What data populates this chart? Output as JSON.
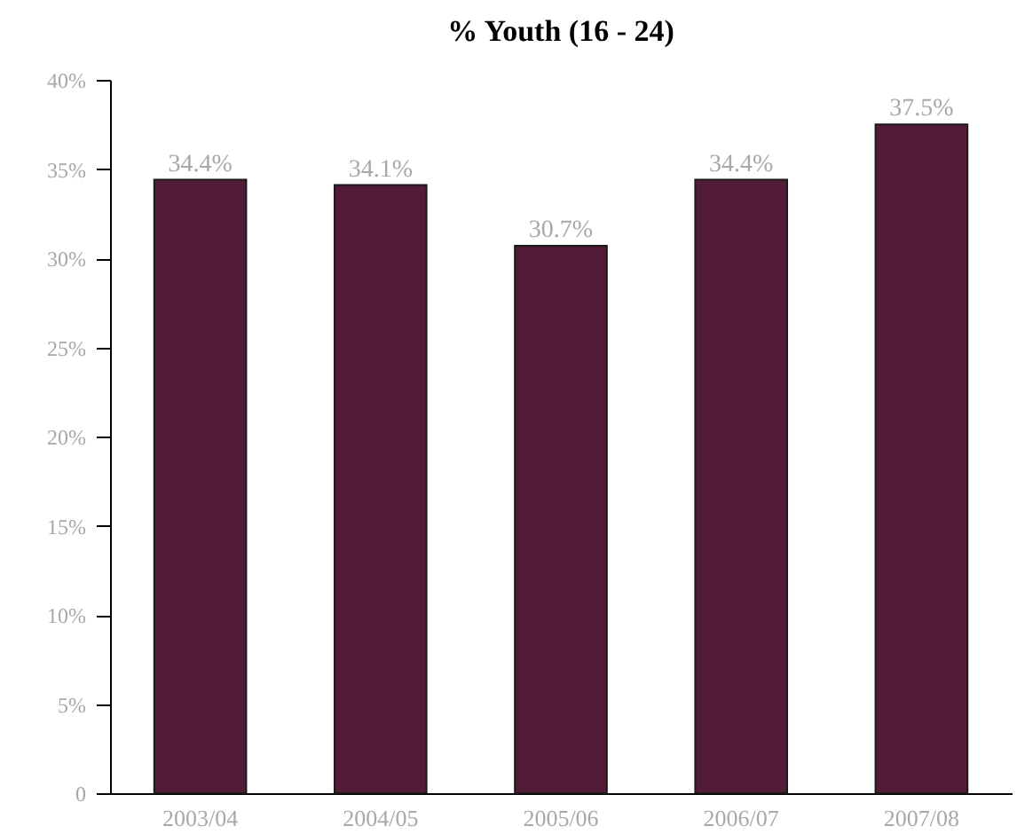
{
  "chart_data": {
    "type": "bar",
    "title": "% Youth  (16 - 24)",
    "categories": [
      "2003/04",
      "2004/05",
      "2005/06",
      "2006/07",
      "2007/08"
    ],
    "values": [
      34.4,
      34.1,
      30.7,
      34.4,
      37.5
    ],
    "value_labels": [
      "34.4%",
      "34.1%",
      "30.7%",
      "34.4%",
      "37.5%"
    ],
    "color": "#521c38",
    "ylim": [
      0,
      40
    ],
    "yticks": [
      0,
      {
        "value": 5,
        "label": "5%"
      },
      {
        "value": 10,
        "label": "10%"
      },
      {
        "value": 15,
        "label": "15%"
      },
      {
        "value": 20,
        "label": "20%"
      },
      {
        "value": 25,
        "label": "25%"
      },
      {
        "value": 30,
        "label": "30%"
      },
      {
        "value": 35,
        "label": "35%"
      },
      {
        "value": 40,
        "label": "40%"
      }
    ]
  }
}
